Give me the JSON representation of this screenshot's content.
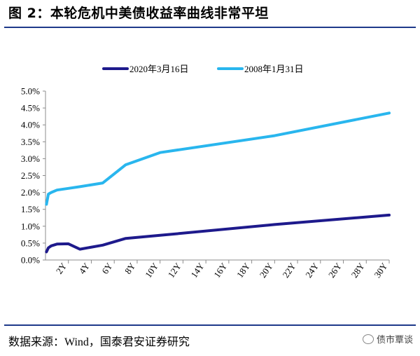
{
  "header": {
    "title": "图 2：本轮危机中美债收益率曲线非常平坦"
  },
  "footer": {
    "source": "数据来源：Wind，国泰君安证券研究"
  },
  "watermark": {
    "text": "债市覃谈"
  },
  "colors": {
    "rule": "#1f3a8a",
    "series1": "#1e1a8c",
    "series2": "#29b6ee",
    "axis": "#8c8c8c"
  },
  "chart_data": {
    "type": "line",
    "title": "",
    "xlabel": "",
    "ylabel": "",
    "x_ticks": [
      "2Y",
      "4Y",
      "6Y",
      "8Y",
      "10Y",
      "12Y",
      "14Y",
      "16Y",
      "18Y",
      "20Y",
      "22Y",
      "24Y",
      "26Y",
      "28Y",
      "30Y"
    ],
    "xlim": [
      0,
      30
    ],
    "ylim": [
      0,
      5.0
    ],
    "y_ticks": [
      "0.0%",
      "0.5%",
      "1.0%",
      "1.5%",
      "2.0%",
      "2.5%",
      "3.0%",
      "3.5%",
      "4.0%",
      "4.5%",
      "5.0%"
    ],
    "legend_position": "top-center",
    "grid": false,
    "series": [
      {
        "name": "2020年3月16日",
        "color": "#1e1a8c",
        "points": [
          [
            0.083,
            0.24
          ],
          [
            0.25,
            0.36
          ],
          [
            0.5,
            0.42
          ],
          [
            1,
            0.47
          ],
          [
            2,
            0.48
          ],
          [
            3,
            0.32
          ],
          [
            5,
            0.44
          ],
          [
            7,
            0.64
          ],
          [
            10,
            0.73
          ],
          [
            20,
            1.05
          ],
          [
            30,
            1.33
          ]
        ]
      },
      {
        "name": "2008年1月31日",
        "color": "#29b6ee",
        "points": [
          [
            0.083,
            1.65
          ],
          [
            0.25,
            1.95
          ],
          [
            0.5,
            2.0
          ],
          [
            1,
            2.07
          ],
          [
            2,
            2.12
          ],
          [
            3,
            2.17
          ],
          [
            5,
            2.28
          ],
          [
            7,
            2.82
          ],
          [
            10,
            3.18
          ],
          [
            20,
            3.68
          ],
          [
            30,
            4.35
          ]
        ]
      }
    ]
  }
}
